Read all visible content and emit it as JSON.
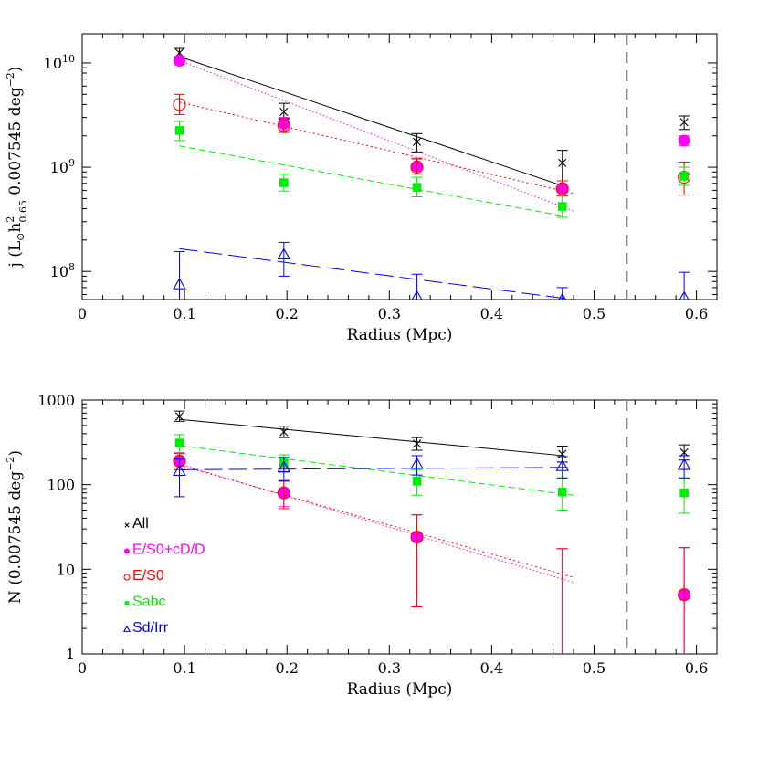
{
  "chart_data": [
    {
      "type": "scatter",
      "panel": "top",
      "ylabel_parts": [
        "j (L",
        "h",
        "2",
        "0.65",
        " 0.007545 deg",
        "−2",
        ")"
      ],
      "xlabel": "Radius (Mpc)",
      "xlim": [
        0,
        0.62
      ],
      "ylim_log10": [
        7.73,
        10.28
      ],
      "yscale": "log",
      "x_ticks": [
        {
          "v": 0,
          "label": "0"
        },
        {
          "v": 0.1,
          "label": "0.1"
        },
        {
          "v": 0.2,
          "label": "0.2"
        },
        {
          "v": 0.3,
          "label": "0.3"
        },
        {
          "v": 0.4,
          "label": "0.4"
        },
        {
          "v": 0.5,
          "label": "0.5"
        },
        {
          "v": 0.6,
          "label": "0.6"
        }
      ],
      "y_major_exponents": [
        8,
        9,
        10
      ],
      "y_major_label_base": "10",
      "vline_x": 0.532,
      "series": [
        {
          "name": "All",
          "marker": "cross",
          "color": "#000000",
          "points": [
            {
              "x": 0.095,
              "y": 12500000000.0,
              "lo": 11500000000.0,
              "hi": 13800000000.0
            },
            {
              "x": 0.197,
              "y": 3400000000.0,
              "lo": 2900000000.0,
              "hi": 4100000000.0
            },
            {
              "x": 0.327,
              "y": 1750000000.0,
              "lo": 1400000000.0,
              "hi": 2100000000.0
            },
            {
              "x": 0.469,
              "y": 1100000000.0,
              "lo": 620000000.0,
              "hi": 1450000000.0
            },
            {
              "x": 0.588,
              "y": 2700000000.0,
              "lo": 2300000000.0,
              "hi": 3100000000.0
            }
          ],
          "fit": {
            "x": [
              0.095,
              0.47
            ],
            "y": [
              11500000000.0,
              660000000.0
            ],
            "dash": "none"
          }
        },
        {
          "name": "E/S0+cD/D",
          "marker": "filled-circle",
          "color": "#ff00ff",
          "points": [
            {
              "x": 0.095,
              "y": 10500000000.0,
              "lo": 9600000000.0,
              "hi": 11600000000.0
            },
            {
              "x": 0.197,
              "y": 2600000000.0,
              "lo": 2250000000.0,
              "hi": 3000000000.0
            },
            {
              "x": 0.327,
              "y": 1020000000.0,
              "lo": 860000000.0,
              "hi": 1220000000.0
            },
            {
              "x": 0.469,
              "y": 630000000.0,
              "lo": 540000000.0,
              "hi": 740000000.0
            },
            {
              "x": 0.588,
              "y": 1800000000.0,
              "lo": 1600000000.0,
              "hi": 2000000000.0
            }
          ],
          "fit": {
            "x": [
              0.095,
              0.48
            ],
            "y": [
              10500000000.0,
              380000000.0
            ],
            "dash": "1.5,2.5"
          }
        },
        {
          "name": "E/S0",
          "marker": "open-circle",
          "color": "#ff0000",
          "points": [
            {
              "x": 0.095,
              "y": 4000000000.0,
              "lo": 3200000000.0,
              "hi": 5000000000.0
            },
            {
              "x": 0.197,
              "y": 2500000000.0,
              "lo": 2150000000.0,
              "hi": 2950000000.0
            },
            {
              "x": 0.327,
              "y": 1000000000.0,
              "lo": 860000000.0,
              "hi": 1200000000.0
            },
            {
              "x": 0.469,
              "y": 620000000.0,
              "lo": 530000000.0,
              "hi": 740000000.0
            },
            {
              "x": 0.588,
              "y": 800000000.0,
              "lo": 540000000.0,
              "hi": 1120000000.0
            }
          ],
          "fit": {
            "x": [
              0.095,
              0.48
            ],
            "y": [
              4200000000.0,
              560000000.0
            ],
            "dash": "2,3"
          }
        },
        {
          "name": "Sabc",
          "marker": "filled-square",
          "color": "#00ee00",
          "points": [
            {
              "x": 0.095,
              "y": 2250000000.0,
              "lo": 1800000000.0,
              "hi": 2750000000.0
            },
            {
              "x": 0.197,
              "y": 710000000.0,
              "lo": 590000000.0,
              "hi": 860000000.0
            },
            {
              "x": 0.327,
              "y": 640000000.0,
              "lo": 520000000.0,
              "hi": 800000000.0
            },
            {
              "x": 0.469,
              "y": 420000000.0,
              "lo": 330000000.0,
              "hi": 540000000.0
            },
            {
              "x": 0.588,
              "y": 820000000.0,
              "lo": 670000000.0,
              "hi": 1000000000.0
            }
          ],
          "fit": {
            "x": [
              0.095,
              0.47
            ],
            "y": [
              1600000000.0,
              340000000.0
            ],
            "dash": "7,4"
          }
        },
        {
          "name": "Sd/Irr",
          "marker": "open-triangle",
          "color": "#0000ff",
          "points": [
            {
              "x": 0.095,
              "y": 75000000.0,
              "lo": 50000000.0,
              "hi": 155000000.0
            },
            {
              "x": 0.197,
              "y": 145000000.0,
              "lo": 90000000.0,
              "hi": 190000000.0
            },
            {
              "x": 0.327,
              "y": 57000000.0,
              "lo": 30000000.0,
              "hi": 94000000.0
            },
            {
              "x": 0.469,
              "y": 33000000.0,
              "lo": 12000000.0,
              "hi": 70000000.0
            },
            {
              "x": 0.588,
              "y": 56000000.0,
              "lo": 13000000.0,
              "hi": 98000000.0
            }
          ],
          "fit": {
            "x": [
              0.095,
              0.48
            ],
            "y": [
              165000000.0,
              37000000.0
            ],
            "dash": "20,7"
          }
        }
      ]
    },
    {
      "type": "scatter",
      "panel": "bottom",
      "ylabel_parts": [
        "N (0.007545 deg",
        "−2",
        ")"
      ],
      "xlabel": "Radius (Mpc)",
      "xlim": [
        0,
        0.62
      ],
      "ylim": [
        1,
        1000
      ],
      "yscale": "log",
      "x_ticks": [
        {
          "v": 0,
          "label": "0"
        },
        {
          "v": 0.1,
          "label": "0.1"
        },
        {
          "v": 0.2,
          "label": "0.2"
        },
        {
          "v": 0.3,
          "label": "0.3"
        },
        {
          "v": 0.4,
          "label": "0.4"
        },
        {
          "v": 0.5,
          "label": "0.5"
        },
        {
          "v": 0.6,
          "label": "0.6"
        }
      ],
      "y_ticks": [
        {
          "v": 1,
          "label": "1"
        },
        {
          "v": 10,
          "label": "10"
        },
        {
          "v": 100,
          "label": "100"
        },
        {
          "v": 1000,
          "label": "1000"
        }
      ],
      "vline_x": 0.532,
      "legend": {
        "placement": "lower-left",
        "entries": [
          {
            "label": "All",
            "marker": "cross",
            "color": "#000000"
          },
          {
            "label": "E/S0+cD/D",
            "marker": "filled-circle",
            "color": "#ff00ff"
          },
          {
            "label": "E/S0",
            "marker": "open-circle",
            "color": "#ff0000"
          },
          {
            "label": "Sabc",
            "marker": "filled-square",
            "color": "#00ee00"
          },
          {
            "label": "Sd/Irr",
            "marker": "open-triangle",
            "color": "#0000ff"
          }
        ]
      },
      "series": [
        {
          "name": "All",
          "marker": "cross",
          "color": "#000000",
          "points": [
            {
              "x": 0.095,
              "y": 640,
              "lo": 560,
              "hi": 740
            },
            {
              "x": 0.197,
              "y": 420,
              "lo": 360,
              "hi": 490
            },
            {
              "x": 0.327,
              "y": 305,
              "lo": 255,
              "hi": 360
            },
            {
              "x": 0.469,
              "y": 230,
              "lo": 185,
              "hi": 285
            },
            {
              "x": 0.588,
              "y": 240,
              "lo": 195,
              "hi": 295
            }
          ],
          "fit": {
            "x": [
              0.095,
              0.47
            ],
            "y": [
              590,
              220
            ],
            "dash": "none"
          }
        },
        {
          "name": "E/S0+cD/D",
          "marker": "filled-circle",
          "color": "#ff00ff",
          "points": [
            {
              "x": 0.095,
              "y": 190,
              "lo": 150,
              "hi": 235
            },
            {
              "x": 0.197,
              "y": 80,
              "lo": 55,
              "hi": 110
            },
            {
              "x": 0.327,
              "y": 24,
              "lo": 3.6,
              "hi": 44
            },
            {
              "x": 0.469,
              "y": null,
              "lo": 1,
              "hi": 17.5
            },
            {
              "x": 0.588,
              "y": 5,
              "lo": 1,
              "hi": 18
            }
          ],
          "fit": {
            "x": [
              0.095,
              0.48
            ],
            "y": [
              175,
              7
            ],
            "dash": "1.5,2.5"
          }
        },
        {
          "name": "E/S0",
          "marker": "open-circle",
          "color": "#ff0000",
          "points": [
            {
              "x": 0.095,
              "y": 190,
              "lo": 150,
              "hi": 235
            },
            {
              "x": 0.197,
              "y": 80,
              "lo": 52,
              "hi": 112
            },
            {
              "x": 0.327,
              "y": 24,
              "lo": 3.6,
              "hi": 44
            },
            {
              "x": 0.469,
              "y": null,
              "lo": 1,
              "hi": 17.5
            },
            {
              "x": 0.588,
              "y": 5,
              "lo": 1,
              "hi": 18
            }
          ],
          "fit": {
            "x": [
              0.095,
              0.48
            ],
            "y": [
              170,
              8
            ],
            "dash": "2,3"
          }
        },
        {
          "name": "Sabc",
          "marker": "filled-square",
          "color": "#00ee00",
          "points": [
            {
              "x": 0.095,
              "y": 310,
              "lo": 240,
              "hi": 390
            },
            {
              "x": 0.197,
              "y": 180,
              "lo": 140,
              "hi": 225
            },
            {
              "x": 0.327,
              "y": 110,
              "lo": 75,
              "hi": 150
            },
            {
              "x": 0.469,
              "y": 82,
              "lo": 50,
              "hi": 120
            },
            {
              "x": 0.588,
              "y": 80,
              "lo": 46,
              "hi": 120
            }
          ],
          "fit": {
            "x": [
              0.095,
              0.48
            ],
            "y": [
              290,
              75
            ],
            "dash": "7,4"
          }
        },
        {
          "name": "Sd/Irr",
          "marker": "open-triangle",
          "color": "#0000ff",
          "points": [
            {
              "x": 0.095,
              "y": 145,
              "lo": 72,
              "hi": 200
            },
            {
              "x": 0.197,
              "y": 160,
              "lo": 110,
              "hi": 210
            },
            {
              "x": 0.327,
              "y": 175,
              "lo": 130,
              "hi": 220
            },
            {
              "x": 0.469,
              "y": 165,
              "lo": 120,
              "hi": 215
            },
            {
              "x": 0.588,
              "y": 170,
              "lo": 120,
              "hi": 220
            }
          ],
          "fit": {
            "x": [
              0.095,
              0.48
            ],
            "y": [
              150,
              160
            ],
            "dash": "20,7"
          }
        }
      ]
    }
  ]
}
